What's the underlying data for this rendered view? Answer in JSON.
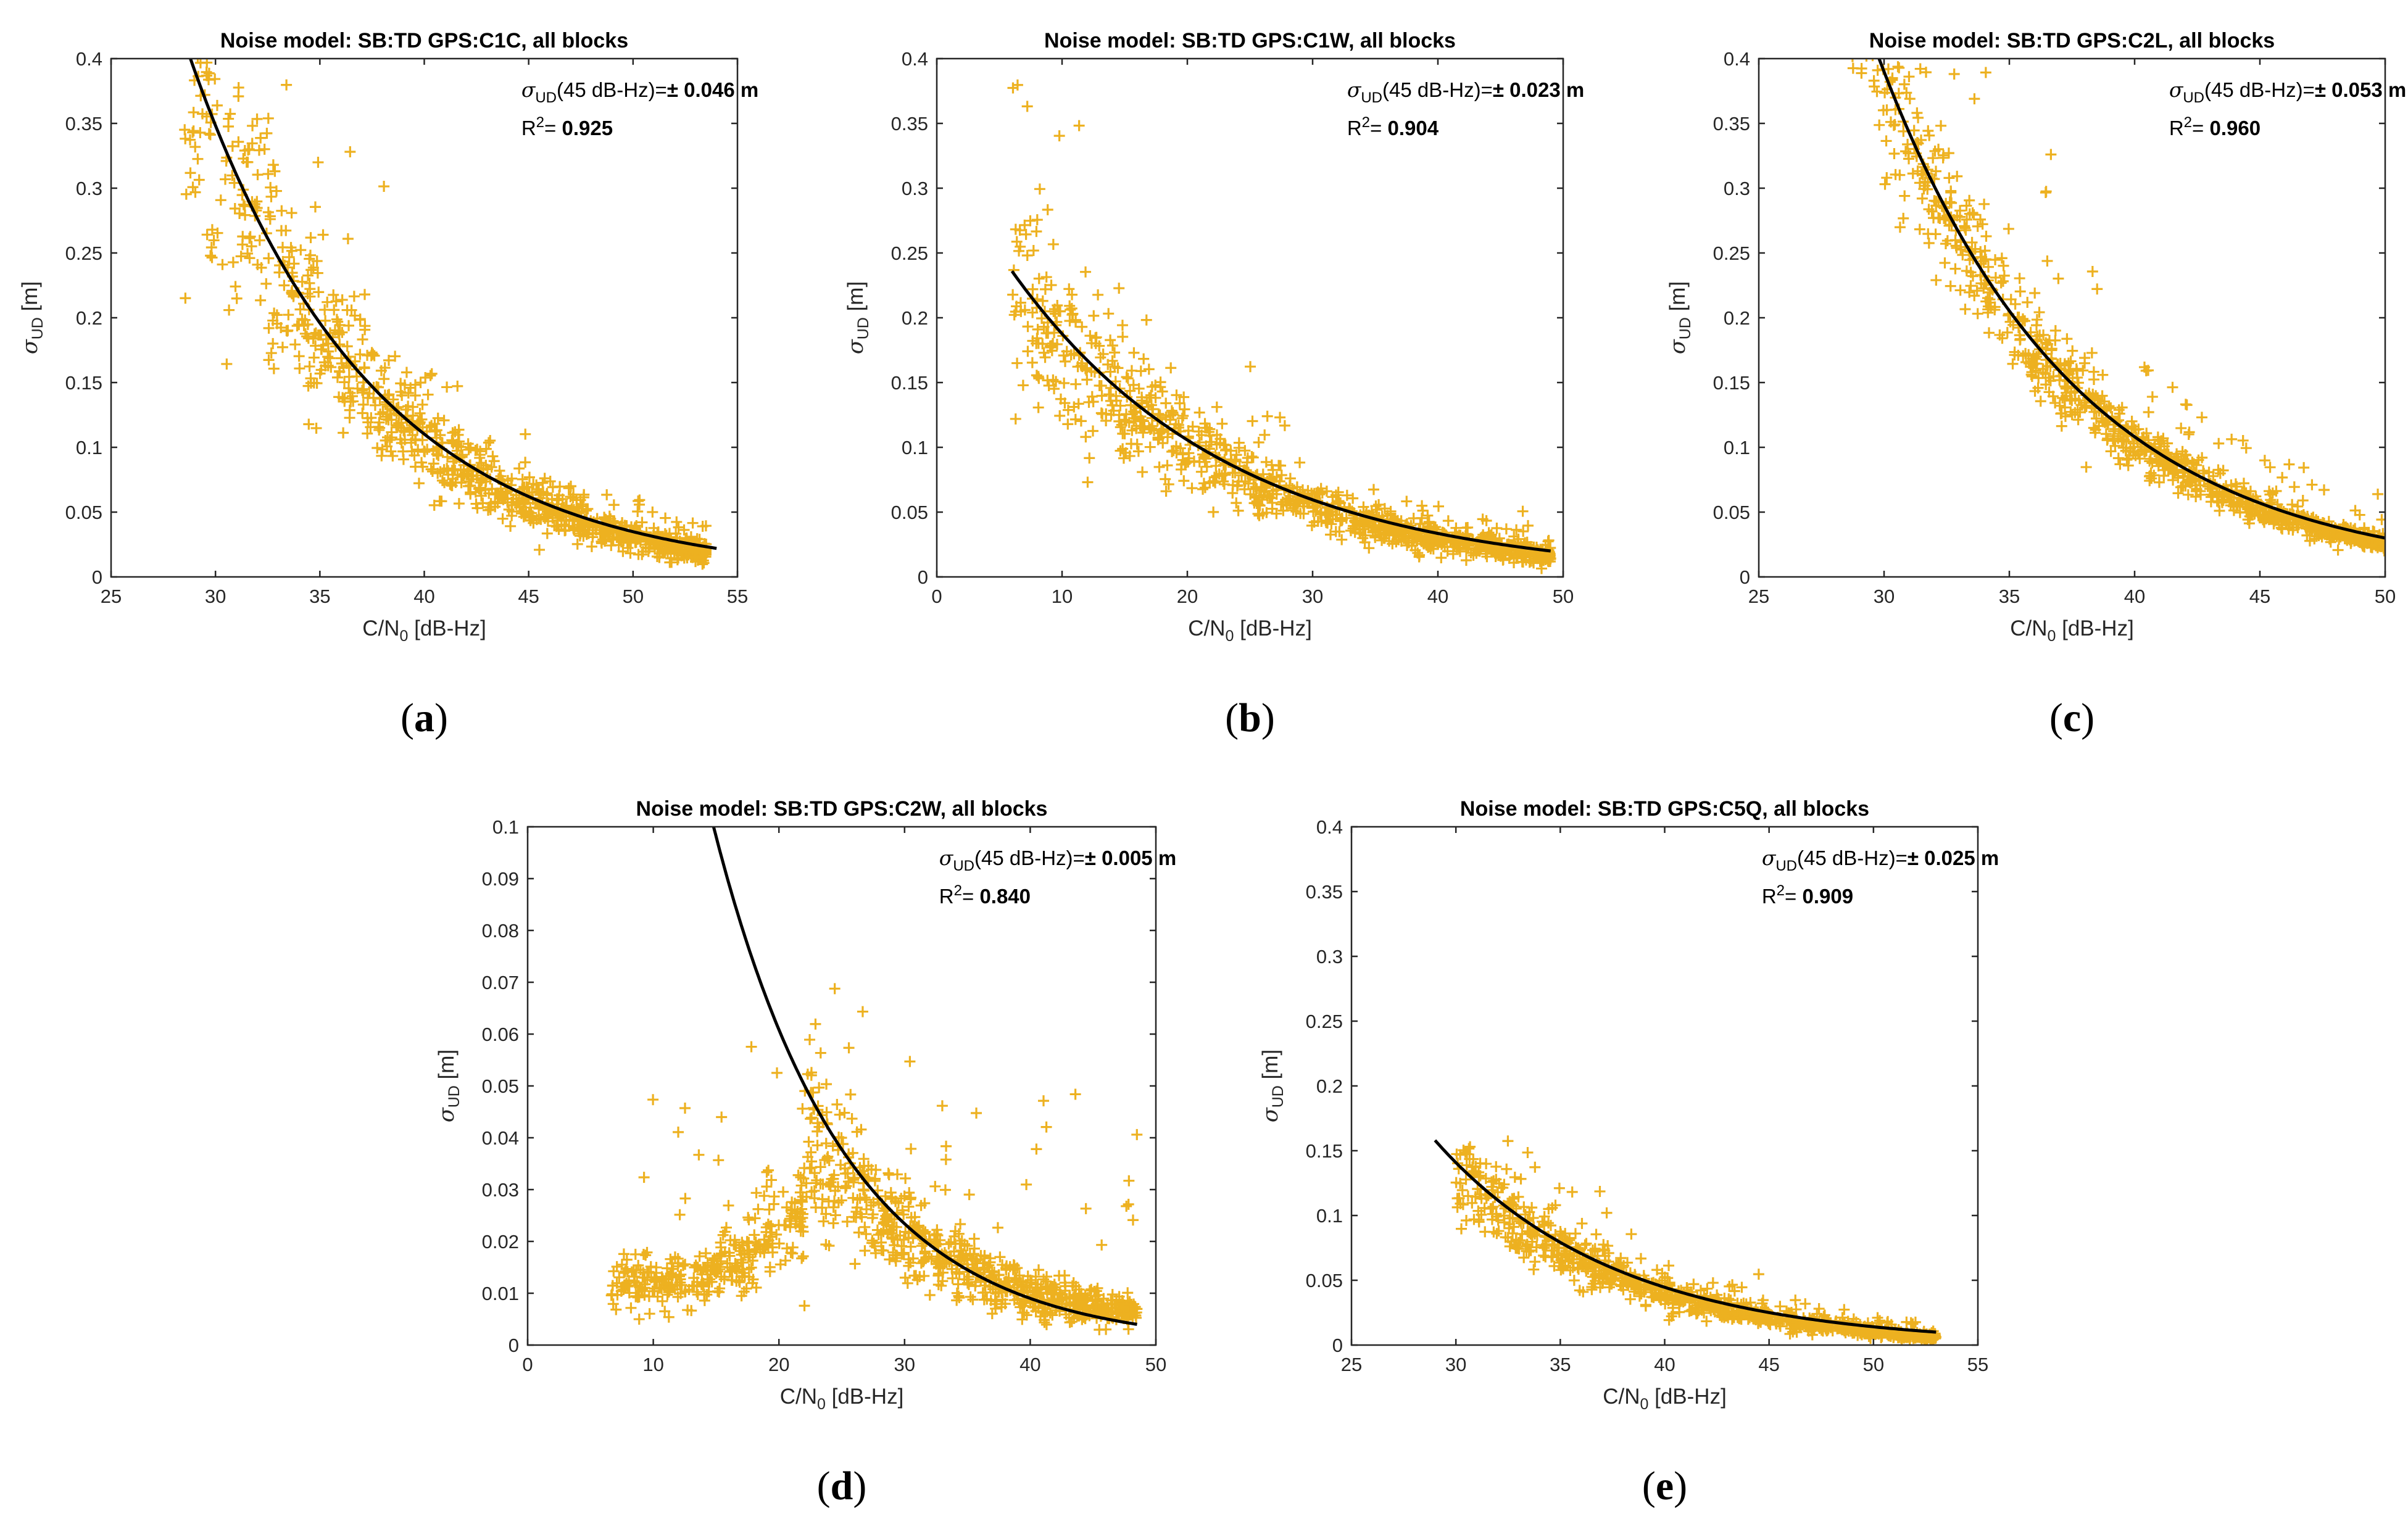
{
  "chart_data": [
    {
      "type": "scatter",
      "panel": "a",
      "caption": "(a)",
      "title": "Noise model: SB:TD GPS:C1C, all blocks",
      "xlabel": "C/N0 [dB-Hz]",
      "ylabel": "σUD [m]",
      "xlim": [
        25,
        55
      ],
      "ylim": [
        0,
        0.4
      ],
      "xticks": [
        25,
        30,
        35,
        40,
        45,
        50,
        55
      ],
      "yticks": [
        0,
        0.05,
        0.1,
        0.15,
        0.2,
        0.25,
        0.3,
        0.35,
        0.4
      ],
      "annotation": {
        "sigma_label": "σUD(45 dB-Hz)=±",
        "sigma_value": "0.046 m",
        "r2_label": "R2=",
        "r2_value": "0.925"
      },
      "series": [
        {
          "name": "",
          "kind": "points",
          "marker": "+",
          "color": "#EDB120",
          "x_range": [
            28.5,
            53.5
          ],
          "fit_at_45": 0.046
        },
        {
          "name": "",
          "kind": "fit",
          "color": "#000000",
          "x_range": [
            28.8,
            54
          ],
          "y_at_start": 0.4,
          "y_at_end": 0.022
        }
      ]
    },
    {
      "type": "scatter",
      "panel": "b",
      "caption": "(b)",
      "title": "Noise model: SB:TD GPS:C1W, all blocks",
      "xlabel": "C/N0 [dB-Hz]",
      "ylabel": "σUD [m]",
      "xlim": [
        0,
        50
      ],
      "ylim": [
        0,
        0.4
      ],
      "xticks": [
        0,
        10,
        20,
        30,
        40,
        50
      ],
      "yticks": [
        0,
        0.05,
        0.1,
        0.15,
        0.2,
        0.25,
        0.3,
        0.35,
        0.4
      ],
      "annotation": {
        "sigma_label": "σUD(45 dB-Hz)=±",
        "sigma_value": "0.023 m",
        "r2_label": "R2=",
        "r2_value": "0.904"
      },
      "series": [
        {
          "name": "",
          "kind": "points",
          "marker": "+",
          "color": "#EDB120",
          "x_range": [
            6,
            49
          ],
          "fit_at_45": 0.023
        },
        {
          "name": "",
          "kind": "fit",
          "color": "#000000",
          "x_range": [
            6,
            49
          ],
          "y_at_start": 0.236,
          "y_at_end": 0.02
        }
      ]
    },
    {
      "type": "scatter",
      "panel": "c",
      "caption": "(c)",
      "title": "Noise model: SB:TD GPS:C2L, all blocks",
      "xlabel": "C/N0 [dB-Hz]",
      "ylabel": "σUD [m]",
      "xlim": [
        25,
        50
      ],
      "ylim": [
        0,
        0.4
      ],
      "xticks": [
        25,
        30,
        35,
        40,
        45,
        50
      ],
      "yticks": [
        0,
        0.05,
        0.1,
        0.15,
        0.2,
        0.25,
        0.3,
        0.35,
        0.4
      ],
      "annotation": {
        "sigma_label": "σUD(45 dB-Hz)=±",
        "sigma_value": "0.053 m",
        "r2_label": "R2=",
        "r2_value": "0.960"
      },
      "series": [
        {
          "name": "",
          "kind": "points",
          "marker": "+",
          "color": "#EDB120",
          "x_range": [
            28.3,
            50
          ],
          "fit_at_45": 0.053
        },
        {
          "name": "",
          "kind": "fit",
          "color": "#000000",
          "x_range": [
            29.8,
            50
          ],
          "y_at_start": 0.4,
          "y_at_end": 0.03
        }
      ]
    },
    {
      "type": "scatter",
      "panel": "d",
      "caption": "(d)",
      "title": "Noise model: SB:TD GPS:C2W, all blocks",
      "xlabel": "C/N0 [dB-Hz]",
      "ylabel": "σUD [m]",
      "xlim": [
        0,
        50
      ],
      "ylim": [
        0,
        0.1
      ],
      "xticks": [
        0,
        10,
        20,
        30,
        40,
        50
      ],
      "yticks": [
        0,
        0.01,
        0.02,
        0.03,
        0.04,
        0.05,
        0.06,
        0.07,
        0.08,
        0.09,
        0.1
      ],
      "annotation": {
        "sigma_label": "σUD(45 dB-Hz)=±",
        "sigma_value": "0.005 m",
        "r2_label": "R2=",
        "r2_value": "0.840"
      },
      "series": [
        {
          "name": "",
          "kind": "points",
          "marker": "+",
          "color": "#EDB120",
          "x_range": [
            6.5,
            48.5
          ],
          "fit_at_45": 0.005
        },
        {
          "name": "",
          "kind": "fit",
          "color": "#000000",
          "x_range": [
            14.8,
            48.5
          ],
          "y_at_start": 0.1,
          "y_at_end": 0.004
        }
      ]
    },
    {
      "type": "scatter",
      "panel": "e",
      "caption": "(e)",
      "title": "Noise model: SB:TD GPS:C5Q, all blocks",
      "xlabel": "C/N0 [dB-Hz]",
      "ylabel": "σUD [m]",
      "xlim": [
        25,
        55
      ],
      "ylim": [
        0,
        0.4
      ],
      "xticks": [
        25,
        30,
        35,
        40,
        45,
        50,
        55
      ],
      "yticks": [
        0,
        0.05,
        0.1,
        0.15,
        0.2,
        0.25,
        0.3,
        0.35,
        0.4
      ],
      "annotation": {
        "sigma_label": "σUD(45 dB-Hz)=±",
        "sigma_value": "0.025 m",
        "r2_label": "R2=",
        "r2_value": "0.909"
      },
      "series": [
        {
          "name": "",
          "kind": "points",
          "marker": "+",
          "color": "#EDB120",
          "x_range": [
            30,
            53
          ],
          "fit_at_45": 0.025
        },
        {
          "name": "",
          "kind": "fit",
          "color": "#000000",
          "x_range": [
            29,
            53
          ],
          "y_at_start": 0.158,
          "y_at_end": 0.01
        }
      ]
    }
  ]
}
